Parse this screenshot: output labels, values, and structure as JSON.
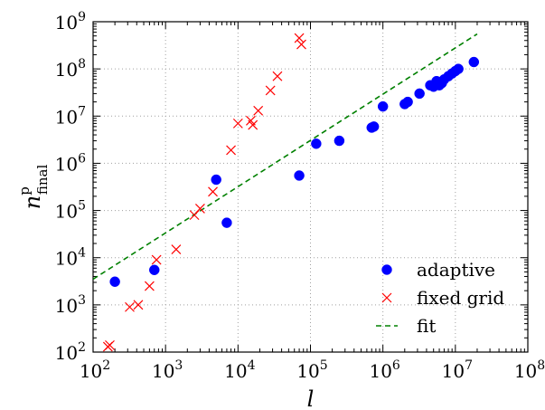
{
  "chart_data": {
    "type": "scatter",
    "title": "",
    "xlabel": "l",
    "ylabel_main": "n",
    "ylabel_sup": "p",
    "ylabel_sub": "final",
    "xscale": "log",
    "yscale": "log",
    "xlim": [
      100,
      100000000
    ],
    "ylim": [
      100,
      1000000000
    ],
    "x_ticks": [
      {
        "base": "10",
        "exp": "2"
      },
      {
        "base": "10",
        "exp": "3"
      },
      {
        "base": "10",
        "exp": "4"
      },
      {
        "base": "10",
        "exp": "5"
      },
      {
        "base": "10",
        "exp": "6"
      },
      {
        "base": "10",
        "exp": "7"
      },
      {
        "base": "10",
        "exp": "8"
      }
    ],
    "y_ticks": [
      {
        "base": "10",
        "exp": "2"
      },
      {
        "base": "10",
        "exp": "3"
      },
      {
        "base": "10",
        "exp": "4"
      },
      {
        "base": "10",
        "exp": "5"
      },
      {
        "base": "10",
        "exp": "6"
      },
      {
        "base": "10",
        "exp": "7"
      },
      {
        "base": "10",
        "exp": "8"
      },
      {
        "base": "10",
        "exp": "9"
      }
    ],
    "grid": true,
    "legend_position": "lower-right",
    "series": [
      {
        "name": "adaptive",
        "marker": "circle",
        "color": "#0000ff",
        "points": [
          [
            200,
            3100
          ],
          [
            700,
            5500
          ],
          [
            5000,
            450000
          ],
          [
            7000,
            55000
          ],
          [
            70000,
            550000
          ],
          [
            120000,
            2600000
          ],
          [
            250000,
            3000000
          ],
          [
            700000,
            5700000
          ],
          [
            750000,
            6000000
          ],
          [
            1000000,
            16000000
          ],
          [
            2000000,
            18000000
          ],
          [
            2200000,
            20000000
          ],
          [
            3200000,
            30000000
          ],
          [
            4500000,
            45000000
          ],
          [
            5000000,
            42000000
          ],
          [
            5500000,
            55000000
          ],
          [
            6000000,
            45000000
          ],
          [
            6500000,
            50000000
          ],
          [
            7000000,
            60000000
          ],
          [
            8000000,
            70000000
          ],
          [
            9000000,
            80000000
          ],
          [
            10000000,
            90000000
          ],
          [
            11000000,
            100000000
          ],
          [
            18000000,
            140000000
          ]
        ]
      },
      {
        "name": "fixed grid",
        "marker": "x",
        "color": "#ff0000",
        "points": [
          [
            160,
            130
          ],
          [
            170,
            140
          ],
          [
            320,
            900
          ],
          [
            420,
            1000
          ],
          [
            600,
            2500
          ],
          [
            750,
            9000
          ],
          [
            1400,
            15000
          ],
          [
            2500,
            80000
          ],
          [
            3000,
            110000
          ],
          [
            4500,
            250000
          ],
          [
            8000,
            1900000
          ],
          [
            10000,
            7000000
          ],
          [
            15000,
            8000000
          ],
          [
            16000,
            6500000
          ],
          [
            19000,
            13000000
          ],
          [
            28000,
            35000000
          ],
          [
            35000,
            70000000
          ],
          [
            70000,
            450000000
          ],
          [
            75000,
            330000000
          ]
        ]
      },
      {
        "name": "fit",
        "style": "dashed-line",
        "color": "#008000",
        "points": [
          [
            100,
            3500
          ],
          [
            20000000,
            550000000
          ]
        ]
      }
    ]
  }
}
